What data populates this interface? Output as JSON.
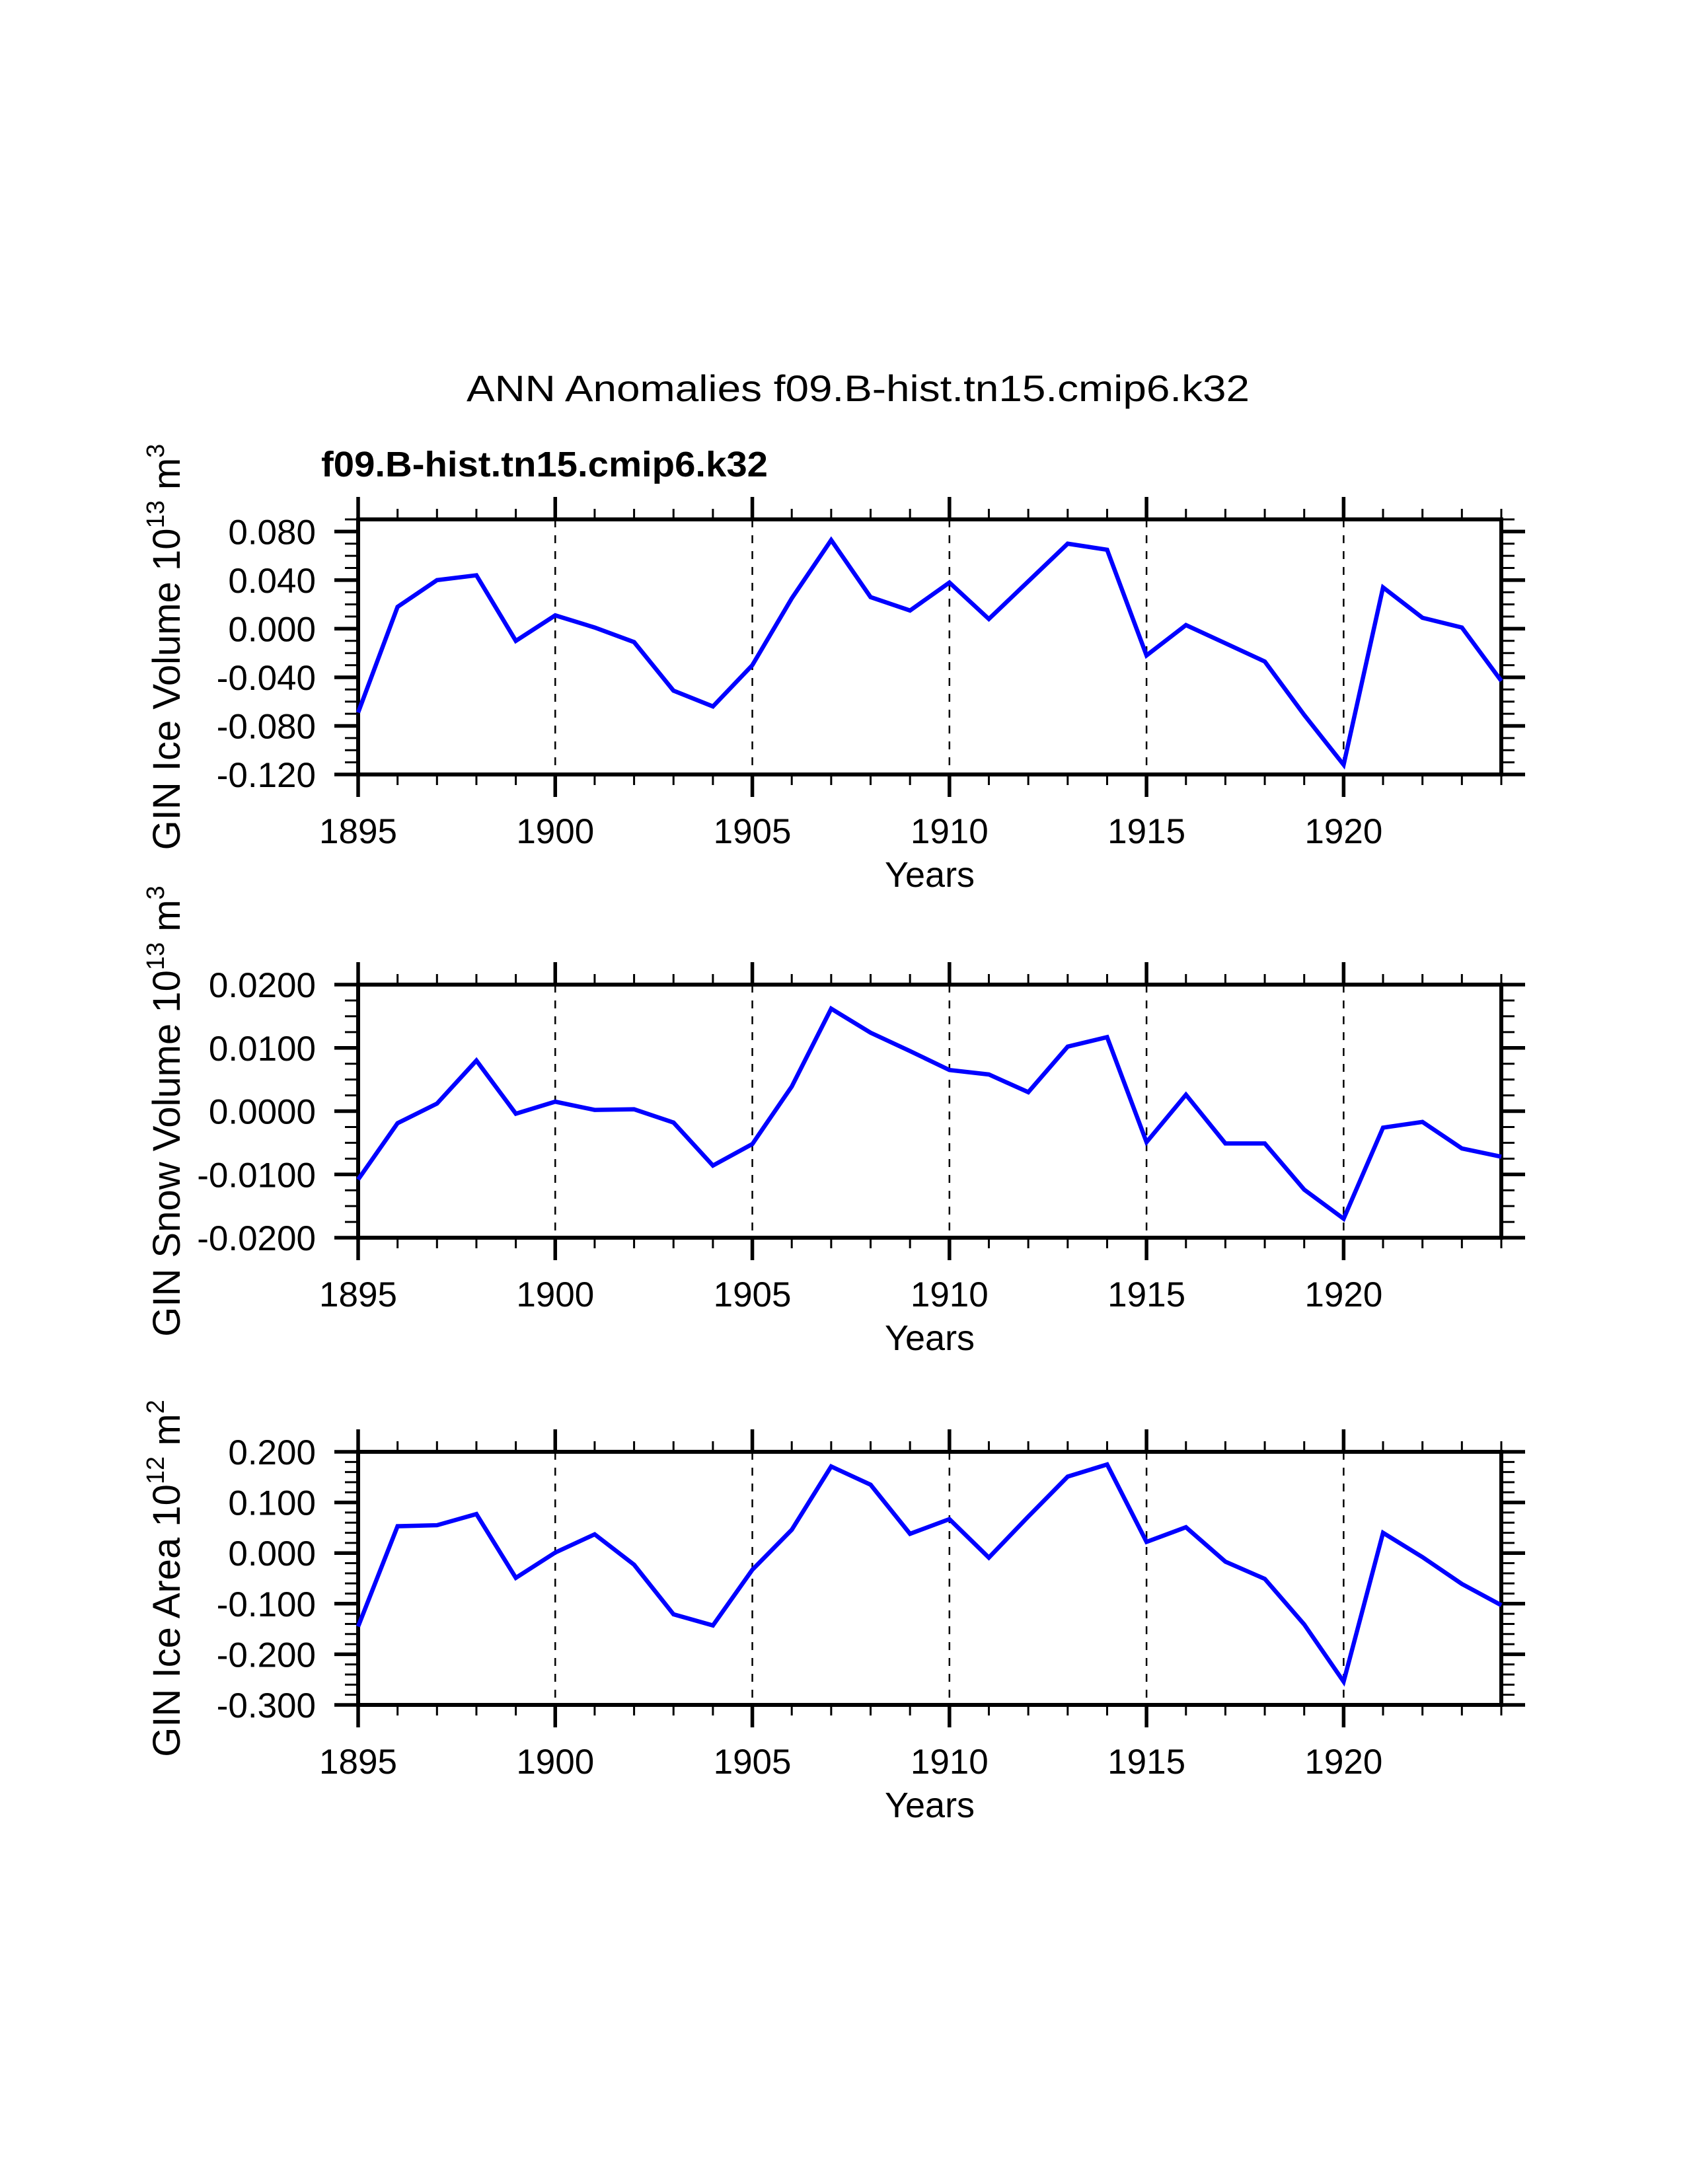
{
  "title": "ANN Anomalies f09.B-hist.tn15.cmip6.k32",
  "legend_label": "f09.B-hist.tn15.cmip6.k32",
  "line_color": "#0000ff",
  "chart_data": [
    {
      "type": "line",
      "name": "gin-ice-volume",
      "title": "",
      "xlabel": "Years",
      "ylabel_parts": [
        {
          "t": "GIN Ice Volume 10",
          "sup": false
        },
        {
          "t": "13",
          "sup": true
        },
        {
          "t": " m",
          "sup": false
        },
        {
          "t": "3",
          "sup": true
        }
      ],
      "xlim": [
        1895,
        1924
      ],
      "ylim": [
        -0.12,
        0.09
      ],
      "xticks": [
        {
          "v": 1895,
          "label": "1895"
        },
        {
          "v": 1900,
          "label": "1900"
        },
        {
          "v": 1905,
          "label": "1905"
        },
        {
          "v": 1910,
          "label": "1910"
        },
        {
          "v": 1915,
          "label": "1915"
        },
        {
          "v": 1920,
          "label": "1920"
        }
      ],
      "xminor_step": 1,
      "grid_x": [
        1900,
        1905,
        1910,
        1915,
        1920
      ],
      "yticks": [
        {
          "v": 0.08,
          "label": "0.080"
        },
        {
          "v": 0.04,
          "label": "0.040"
        },
        {
          "v": 0.0,
          "label": "0.000"
        },
        {
          "v": -0.04,
          "label": "-0.040"
        },
        {
          "v": -0.08,
          "label": "-0.080"
        },
        {
          "v": -0.12,
          "label": "-0.120"
        }
      ],
      "ymajor_step": 0.04,
      "yminor_step": 0.01,
      "x": [
        1895,
        1896,
        1897,
        1898,
        1899,
        1900,
        1901,
        1902,
        1903,
        1904,
        1905,
        1906,
        1907,
        1908,
        1909,
        1910,
        1911,
        1912,
        1913,
        1914,
        1915,
        1916,
        1917,
        1918,
        1919,
        1920,
        1921,
        1922,
        1923,
        1924
      ],
      "values": [
        -0.069,
        0.018,
        0.04,
        0.044,
        -0.01,
        0.011,
        0.001,
        -0.011,
        -0.051,
        -0.064,
        -0.03,
        0.025,
        0.073,
        0.026,
        0.015,
        0.038,
        0.008,
        0.039,
        0.07,
        0.065,
        -0.022,
        0.003,
        -0.012,
        -0.027,
        -0.071,
        -0.112,
        0.034,
        0.009,
        0.001,
        -0.043
      ]
    },
    {
      "type": "line",
      "name": "gin-snow-volume",
      "title": "",
      "xlabel": "Years",
      "ylabel_parts": [
        {
          "t": "GIN Snow Volume 10",
          "sup": false
        },
        {
          "t": "13",
          "sup": true
        },
        {
          "t": " m",
          "sup": false
        },
        {
          "t": "3",
          "sup": true
        }
      ],
      "xlim": [
        1895,
        1924
      ],
      "ylim": [
        -0.02,
        0.02
      ],
      "xticks": [
        {
          "v": 1895,
          "label": "1895"
        },
        {
          "v": 1900,
          "label": "1900"
        },
        {
          "v": 1905,
          "label": "1905"
        },
        {
          "v": 1910,
          "label": "1910"
        },
        {
          "v": 1915,
          "label": "1915"
        },
        {
          "v": 1920,
          "label": "1920"
        }
      ],
      "xminor_step": 1,
      "grid_x": [
        1900,
        1905,
        1910,
        1915,
        1920
      ],
      "yticks": [
        {
          "v": 0.02,
          "label": "0.0200"
        },
        {
          "v": 0.01,
          "label": "0.0100"
        },
        {
          "v": 0.0,
          "label": "0.0000"
        },
        {
          "v": -0.01,
          "label": "-0.0100"
        },
        {
          "v": -0.02,
          "label": "-0.0200"
        }
      ],
      "ymajor_step": 0.01,
      "yminor_step": 0.0025,
      "x": [
        1895,
        1896,
        1897,
        1898,
        1899,
        1900,
        1901,
        1902,
        1903,
        1904,
        1905,
        1906,
        1907,
        1908,
        1909,
        1910,
        1911,
        1912,
        1913,
        1914,
        1915,
        1916,
        1917,
        1918,
        1919,
        1920,
        1921,
        1922,
        1923,
        1924
      ],
      "values": [
        -0.0108,
        -0.0019,
        0.0012,
        0.008,
        -0.0004,
        0.0015,
        0.0002,
        0.0003,
        -0.0018,
        -0.0086,
        -0.0052,
        0.0039,
        0.0162,
        0.0124,
        0.0095,
        0.0065,
        0.0058,
        0.003,
        0.0102,
        0.0117,
        -0.0049,
        0.0026,
        -0.0051,
        -0.0051,
        -0.0124,
        -0.017,
        -0.0026,
        -0.0017,
        -0.0059,
        -0.0072
      ]
    },
    {
      "type": "line",
      "name": "gin-ice-area",
      "title": "",
      "xlabel": "Years",
      "ylabel_parts": [
        {
          "t": "GIN Ice Area 10",
          "sup": false
        },
        {
          "t": "12",
          "sup": true
        },
        {
          "t": " m",
          "sup": false
        },
        {
          "t": "2",
          "sup": true
        }
      ],
      "xlim": [
        1895,
        1924
      ],
      "ylim": [
        -0.3,
        0.2
      ],
      "xticks": [
        {
          "v": 1895,
          "label": "1895"
        },
        {
          "v": 1900,
          "label": "1900"
        },
        {
          "v": 1905,
          "label": "1905"
        },
        {
          "v": 1910,
          "label": "1910"
        },
        {
          "v": 1915,
          "label": "1915"
        },
        {
          "v": 1920,
          "label": "1920"
        }
      ],
      "xminor_step": 1,
      "grid_x": [
        1900,
        1905,
        1910,
        1915,
        1920
      ],
      "yticks": [
        {
          "v": 0.2,
          "label": "0.200"
        },
        {
          "v": 0.1,
          "label": "0.100"
        },
        {
          "v": 0.0,
          "label": "0.000"
        },
        {
          "v": -0.1,
          "label": "-0.100"
        },
        {
          "v": -0.2,
          "label": "-0.200"
        },
        {
          "v": -0.3,
          "label": "-0.300"
        }
      ],
      "ymajor_step": 0.1,
      "yminor_step": 0.02,
      "x": [
        1895,
        1896,
        1897,
        1898,
        1899,
        1900,
        1901,
        1902,
        1903,
        1904,
        1905,
        1906,
        1907,
        1908,
        1909,
        1910,
        1911,
        1912,
        1913,
        1914,
        1915,
        1916,
        1917,
        1918,
        1919,
        1920,
        1921,
        1922,
        1923,
        1924
      ],
      "values": [
        -0.145,
        0.053,
        0.055,
        0.077,
        -0.049,
        0.001,
        0.037,
        -0.023,
        -0.121,
        -0.143,
        -0.033,
        0.046,
        0.171,
        0.135,
        0.038,
        0.067,
        -0.009,
        0.072,
        0.151,
        0.175,
        0.022,
        0.051,
        -0.017,
        -0.051,
        -0.141,
        -0.254,
        0.04,
        -0.008,
        -0.061,
        -0.103
      ]
    }
  ]
}
